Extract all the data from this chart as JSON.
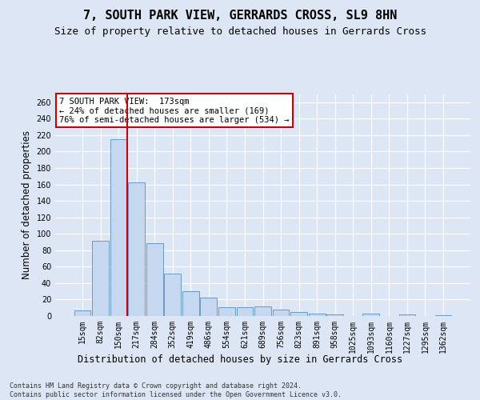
{
  "title": "7, SOUTH PARK VIEW, GERRARDS CROSS, SL9 8HN",
  "subtitle": "Size of property relative to detached houses in Gerrards Cross",
  "xlabel": "Distribution of detached houses by size in Gerrards Cross",
  "ylabel": "Number of detached properties",
  "categories": [
    "15sqm",
    "82sqm",
    "150sqm",
    "217sqm",
    "284sqm",
    "352sqm",
    "419sqm",
    "486sqm",
    "554sqm",
    "621sqm",
    "689sqm",
    "756sqm",
    "823sqm",
    "891sqm",
    "958sqm",
    "1025sqm",
    "1093sqm",
    "1160sqm",
    "1227sqm",
    "1295sqm",
    "1362sqm"
  ],
  "values": [
    7,
    91,
    215,
    162,
    89,
    52,
    30,
    22,
    11,
    11,
    12,
    8,
    5,
    3,
    2,
    0,
    3,
    0,
    2,
    0,
    1
  ],
  "bar_color": "#c5d8f0",
  "bar_edge_color": "#5a8fc0",
  "marker_color": "#cc0000",
  "annotation_text": "7 SOUTH PARK VIEW:  173sqm\n← 24% of detached houses are smaller (169)\n76% of semi-detached houses are larger (534) →",
  "annotation_box_color": "#ffffff",
  "annotation_box_edge": "#cc0000",
  "ylim": [
    0,
    270
  ],
  "yticks": [
    0,
    20,
    40,
    60,
    80,
    100,
    120,
    140,
    160,
    180,
    200,
    220,
    240,
    260
  ],
  "background_color": "#dce6f5",
  "grid_color": "#ffffff",
  "title_fontsize": 11,
  "subtitle_fontsize": 9,
  "axis_label_fontsize": 8.5,
  "tick_fontsize": 7,
  "footer_text": "Contains HM Land Registry data © Crown copyright and database right 2024.\nContains public sector information licensed under the Open Government Licence v3.0."
}
